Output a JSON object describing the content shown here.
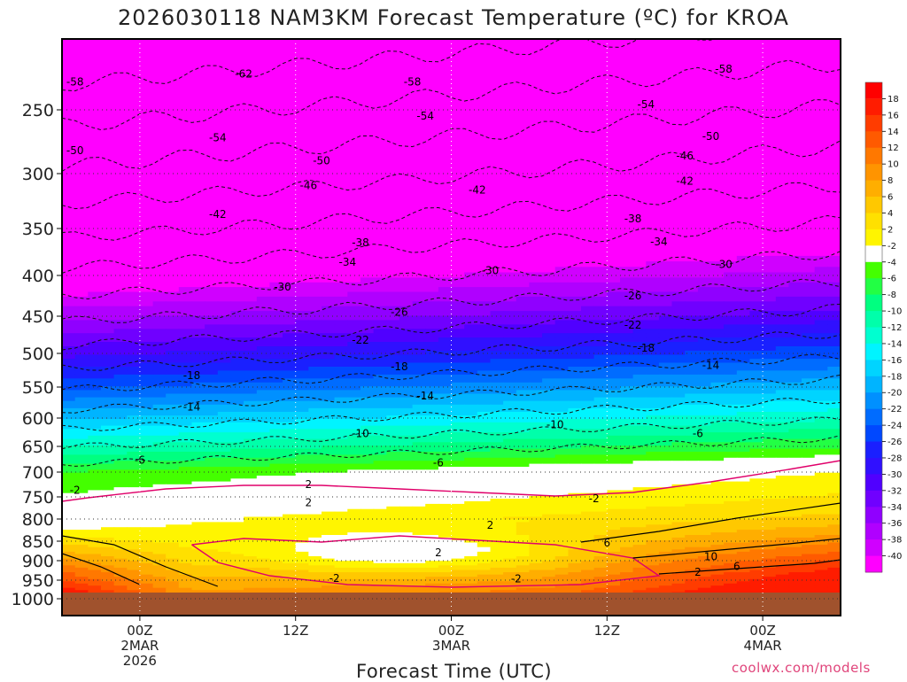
{
  "title": "2026030118 NAM3KM Forecast Temperature (ºC) for KROA",
  "credit": "coolwx.com/models",
  "chart_data": {
    "type": "heatmap",
    "title": "2026030118 NAM3KM Forecast Temperature (ºC) for KROA",
    "xlabel": "Forecast Time (UTC)",
    "ylabel": "",
    "x_ticks": [
      {
        "label": "00Z",
        "sub": [
          "2MAR",
          "2026"
        ],
        "hour": 6
      },
      {
        "label": "12Z",
        "sub": [],
        "hour": 18
      },
      {
        "label": "00Z",
        "sub": [
          "3MAR"
        ],
        "hour": 30
      },
      {
        "label": "12Z",
        "sub": [],
        "hour": 42
      },
      {
        "label": "00Z",
        "sub": [
          "4MAR"
        ],
        "hour": 54
      }
    ],
    "x_range_hours": [
      0,
      60
    ],
    "y_ticks": [
      250,
      300,
      350,
      400,
      450,
      500,
      550,
      600,
      650,
      700,
      750,
      800,
      850,
      900,
      950,
      1000
    ],
    "y_axis": "pressure (hPa), inverted",
    "colorbar": {
      "levels": [
        18,
        16,
        14,
        12,
        10,
        8,
        6,
        4,
        2,
        -2,
        -4,
        -6,
        -8,
        -10,
        -12,
        -14,
        -16,
        -18,
        -20,
        -22,
        -24,
        -26,
        -28,
        -30,
        -32,
        -34,
        -36,
        -38,
        -40
      ],
      "colors": [
        "#ff1c00",
        "#ff3c00",
        "#ff5a00",
        "#ff7800",
        "#ff9400",
        "#ffae00",
        "#ffc800",
        "#ffe000",
        "#fff500",
        "#ffffff",
        "#44ff00",
        "#22ff44",
        "#00ff80",
        "#00ffaa",
        "#00ffd0",
        "#00f4ff",
        "#00d4ff",
        "#00b4ff",
        "#0090ff",
        "#006cff",
        "#0048ff",
        "#1a20ff",
        "#3010ff",
        "#5000ff",
        "#7000ff",
        "#9000ff",
        "#b000ff",
        "#d000ff",
        "#ff00ff"
      ]
    },
    "contour_labels": [
      {
        "value": -62,
        "hour": 14,
        "p": 222
      },
      {
        "value": -58,
        "hour": 1,
        "p": 228
      },
      {
        "value": -58,
        "hour": 27,
        "p": 228
      },
      {
        "value": -58,
        "hour": 51,
        "p": 218
      },
      {
        "value": -54,
        "hour": 12,
        "p": 272
      },
      {
        "value": -54,
        "hour": 28,
        "p": 255
      },
      {
        "value": -54,
        "hour": 45,
        "p": 246
      },
      {
        "value": -50,
        "hour": 1,
        "p": 282
      },
      {
        "value": -50,
        "hour": 20,
        "p": 290
      },
      {
        "value": -50,
        "hour": 50,
        "p": 271
      },
      {
        "value": -46,
        "hour": 19,
        "p": 311
      },
      {
        "value": -46,
        "hour": 48,
        "p": 286
      },
      {
        "value": -42,
        "hour": 12,
        "p": 337
      },
      {
        "value": -42,
        "hour": 32,
        "p": 315
      },
      {
        "value": -42,
        "hour": 48,
        "p": 307
      },
      {
        "value": -38,
        "hour": 23,
        "p": 365
      },
      {
        "value": -38,
        "hour": 44,
        "p": 341
      },
      {
        "value": -34,
        "hour": 22,
        "p": 386
      },
      {
        "value": -34,
        "hour": 46,
        "p": 364
      },
      {
        "value": -30,
        "hour": 17,
        "p": 414
      },
      {
        "value": -30,
        "hour": 33,
        "p": 395
      },
      {
        "value": -30,
        "hour": 51,
        "p": 388
      },
      {
        "value": -26,
        "hour": 26,
        "p": 445
      },
      {
        "value": -26,
        "hour": 44,
        "p": 425
      },
      {
        "value": -22,
        "hour": 23,
        "p": 482
      },
      {
        "value": -22,
        "hour": 44,
        "p": 462
      },
      {
        "value": -18,
        "hour": 10,
        "p": 533
      },
      {
        "value": -18,
        "hour": 26,
        "p": 520
      },
      {
        "value": -18,
        "hour": 45,
        "p": 493
      },
      {
        "value": -14,
        "hour": 10,
        "p": 582
      },
      {
        "value": -14,
        "hour": 28,
        "p": 564
      },
      {
        "value": -14,
        "hour": 50,
        "p": 518
      },
      {
        "value": -10,
        "hour": 23,
        "p": 627
      },
      {
        "value": -10,
        "hour": 38,
        "p": 612
      },
      {
        "value": -6,
        "hour": 6,
        "p": 677
      },
      {
        "value": -6,
        "hour": 29,
        "p": 682
      },
      {
        "value": -6,
        "hour": 49,
        "p": 627
      },
      {
        "value": -2,
        "hour": 1,
        "p": 737
      },
      {
        "value": -2,
        "hour": 41,
        "p": 754
      },
      {
        "value": 2,
        "hour": 19,
        "p": 725
      },
      {
        "value": 2,
        "hour": 19,
        "p": 763
      },
      {
        "value": 2,
        "hour": 33,
        "p": 814
      },
      {
        "value": 2,
        "hour": 29,
        "p": 880
      },
      {
        "value": -2,
        "hour": 21,
        "p": 945
      },
      {
        "value": -2,
        "hour": 35,
        "p": 947
      },
      {
        "value": 6,
        "hour": 42,
        "p": 855
      },
      {
        "value": 10,
        "hour": 50,
        "p": 890
      },
      {
        "value": 6,
        "hour": 52,
        "p": 915
      },
      {
        "value": 2,
        "hour": 49,
        "p": 930
      }
    ]
  }
}
